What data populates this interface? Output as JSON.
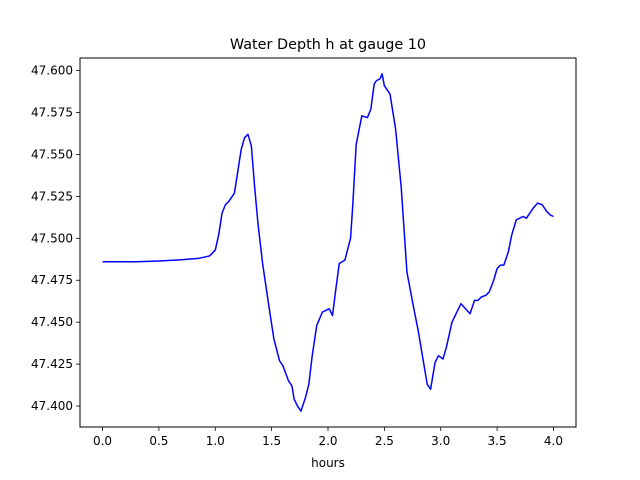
{
  "chart_data": {
    "type": "line",
    "title": "Water Depth h at gauge 10",
    "xlabel": "hours",
    "ylabel": "",
    "xlim": [
      -0.2,
      4.2
    ],
    "ylim": [
      47.3875,
      47.6075
    ],
    "x_ticks": [
      0.0,
      0.5,
      1.0,
      1.5,
      2.0,
      2.5,
      3.0,
      3.5,
      4.0
    ],
    "x_tick_labels": [
      "0.0",
      "0.5",
      "1.0",
      "1.5",
      "2.0",
      "2.5",
      "3.0",
      "3.5",
      "4.0"
    ],
    "y_ticks": [
      47.4,
      47.425,
      47.45,
      47.475,
      47.5,
      47.525,
      47.55,
      47.575,
      47.6
    ],
    "y_tick_labels": [
      "47.400",
      "47.425",
      "47.450",
      "47.475",
      "47.500",
      "47.525",
      "47.550",
      "47.575",
      "47.600"
    ],
    "grid": false,
    "series": [
      {
        "color": "#0000ff",
        "x": [
          0.0,
          0.3,
          0.5,
          0.7,
          0.85,
          0.95,
          1.0,
          1.03,
          1.06,
          1.09,
          1.12,
          1.17,
          1.2,
          1.23,
          1.26,
          1.29,
          1.32,
          1.35,
          1.38,
          1.42,
          1.47,
          1.52,
          1.57,
          1.6,
          1.65,
          1.68,
          1.7,
          1.73,
          1.76,
          1.8,
          1.83,
          1.86,
          1.9,
          1.95,
          1.98,
          2.01,
          2.04,
          2.07,
          2.1,
          2.15,
          2.2,
          2.22,
          2.25,
          2.3,
          2.35,
          2.38,
          2.41,
          2.43,
          2.46,
          2.48,
          2.5,
          2.55,
          2.6,
          2.65,
          2.7,
          2.75,
          2.8,
          2.85,
          2.88,
          2.91,
          2.95,
          2.98,
          3.02,
          3.05,
          3.1,
          3.15,
          3.18,
          3.22,
          3.26,
          3.3,
          3.33,
          3.36,
          3.4,
          3.43,
          3.47,
          3.5,
          3.53,
          3.56,
          3.6,
          3.63,
          3.67,
          3.7,
          3.73,
          3.76,
          3.79,
          3.82,
          3.86,
          3.9,
          3.94,
          3.97,
          4.0
        ],
        "y": [
          47.486,
          47.486,
          47.4865,
          47.4872,
          47.488,
          47.4895,
          47.493,
          47.502,
          47.515,
          47.52,
          47.522,
          47.527,
          47.54,
          47.553,
          47.56,
          47.562,
          47.555,
          47.53,
          47.508,
          47.485,
          47.462,
          47.44,
          47.427,
          47.424,
          47.415,
          47.412,
          47.404,
          47.4,
          47.397,
          47.405,
          47.413,
          47.43,
          47.448,
          47.456,
          47.457,
          47.458,
          47.454,
          47.47,
          47.485,
          47.487,
          47.5,
          47.52,
          47.556,
          47.573,
          47.572,
          47.577,
          47.592,
          47.594,
          47.595,
          47.598,
          47.591,
          47.586,
          47.565,
          47.53,
          47.48,
          47.462,
          47.445,
          47.425,
          47.413,
          47.41,
          47.426,
          47.43,
          47.428,
          47.435,
          47.45,
          47.457,
          47.461,
          47.458,
          47.455,
          47.463,
          47.463,
          47.465,
          47.466,
          47.468,
          47.475,
          47.482,
          47.484,
          47.484,
          47.492,
          47.502,
          47.511,
          47.512,
          47.513,
          47.512,
          47.515,
          47.518,
          47.521,
          47.52,
          47.516,
          47.514,
          47.513
        ]
      }
    ]
  }
}
